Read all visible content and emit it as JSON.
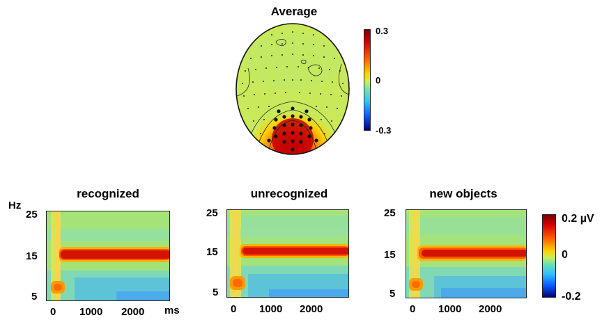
{
  "topoplot": {
    "title": "Average",
    "colorbar_ticks": [
      "0.3",
      "0",
      "-0.3"
    ]
  },
  "tf_panels": [
    {
      "title": "recognized",
      "yticks": [
        "25",
        "15",
        "5"
      ],
      "xticks": [
        "0",
        "1000",
        "2000"
      ]
    },
    {
      "title": "unrecognized",
      "yticks": [
        "25",
        "15",
        "5"
      ],
      "xticks": [
        "0",
        "1000",
        "2000"
      ]
    },
    {
      "title": "new objects",
      "yticks": [
        "25",
        "15",
        "5"
      ],
      "xticks": [
        "0",
        "1000",
        "2000"
      ]
    }
  ],
  "axis_labels": {
    "y_unit": "Hz",
    "x_unit": "ms"
  },
  "tf_colorbar": {
    "ticks": [
      "0.2 µV",
      "0",
      "-0.2"
    ]
  }
}
